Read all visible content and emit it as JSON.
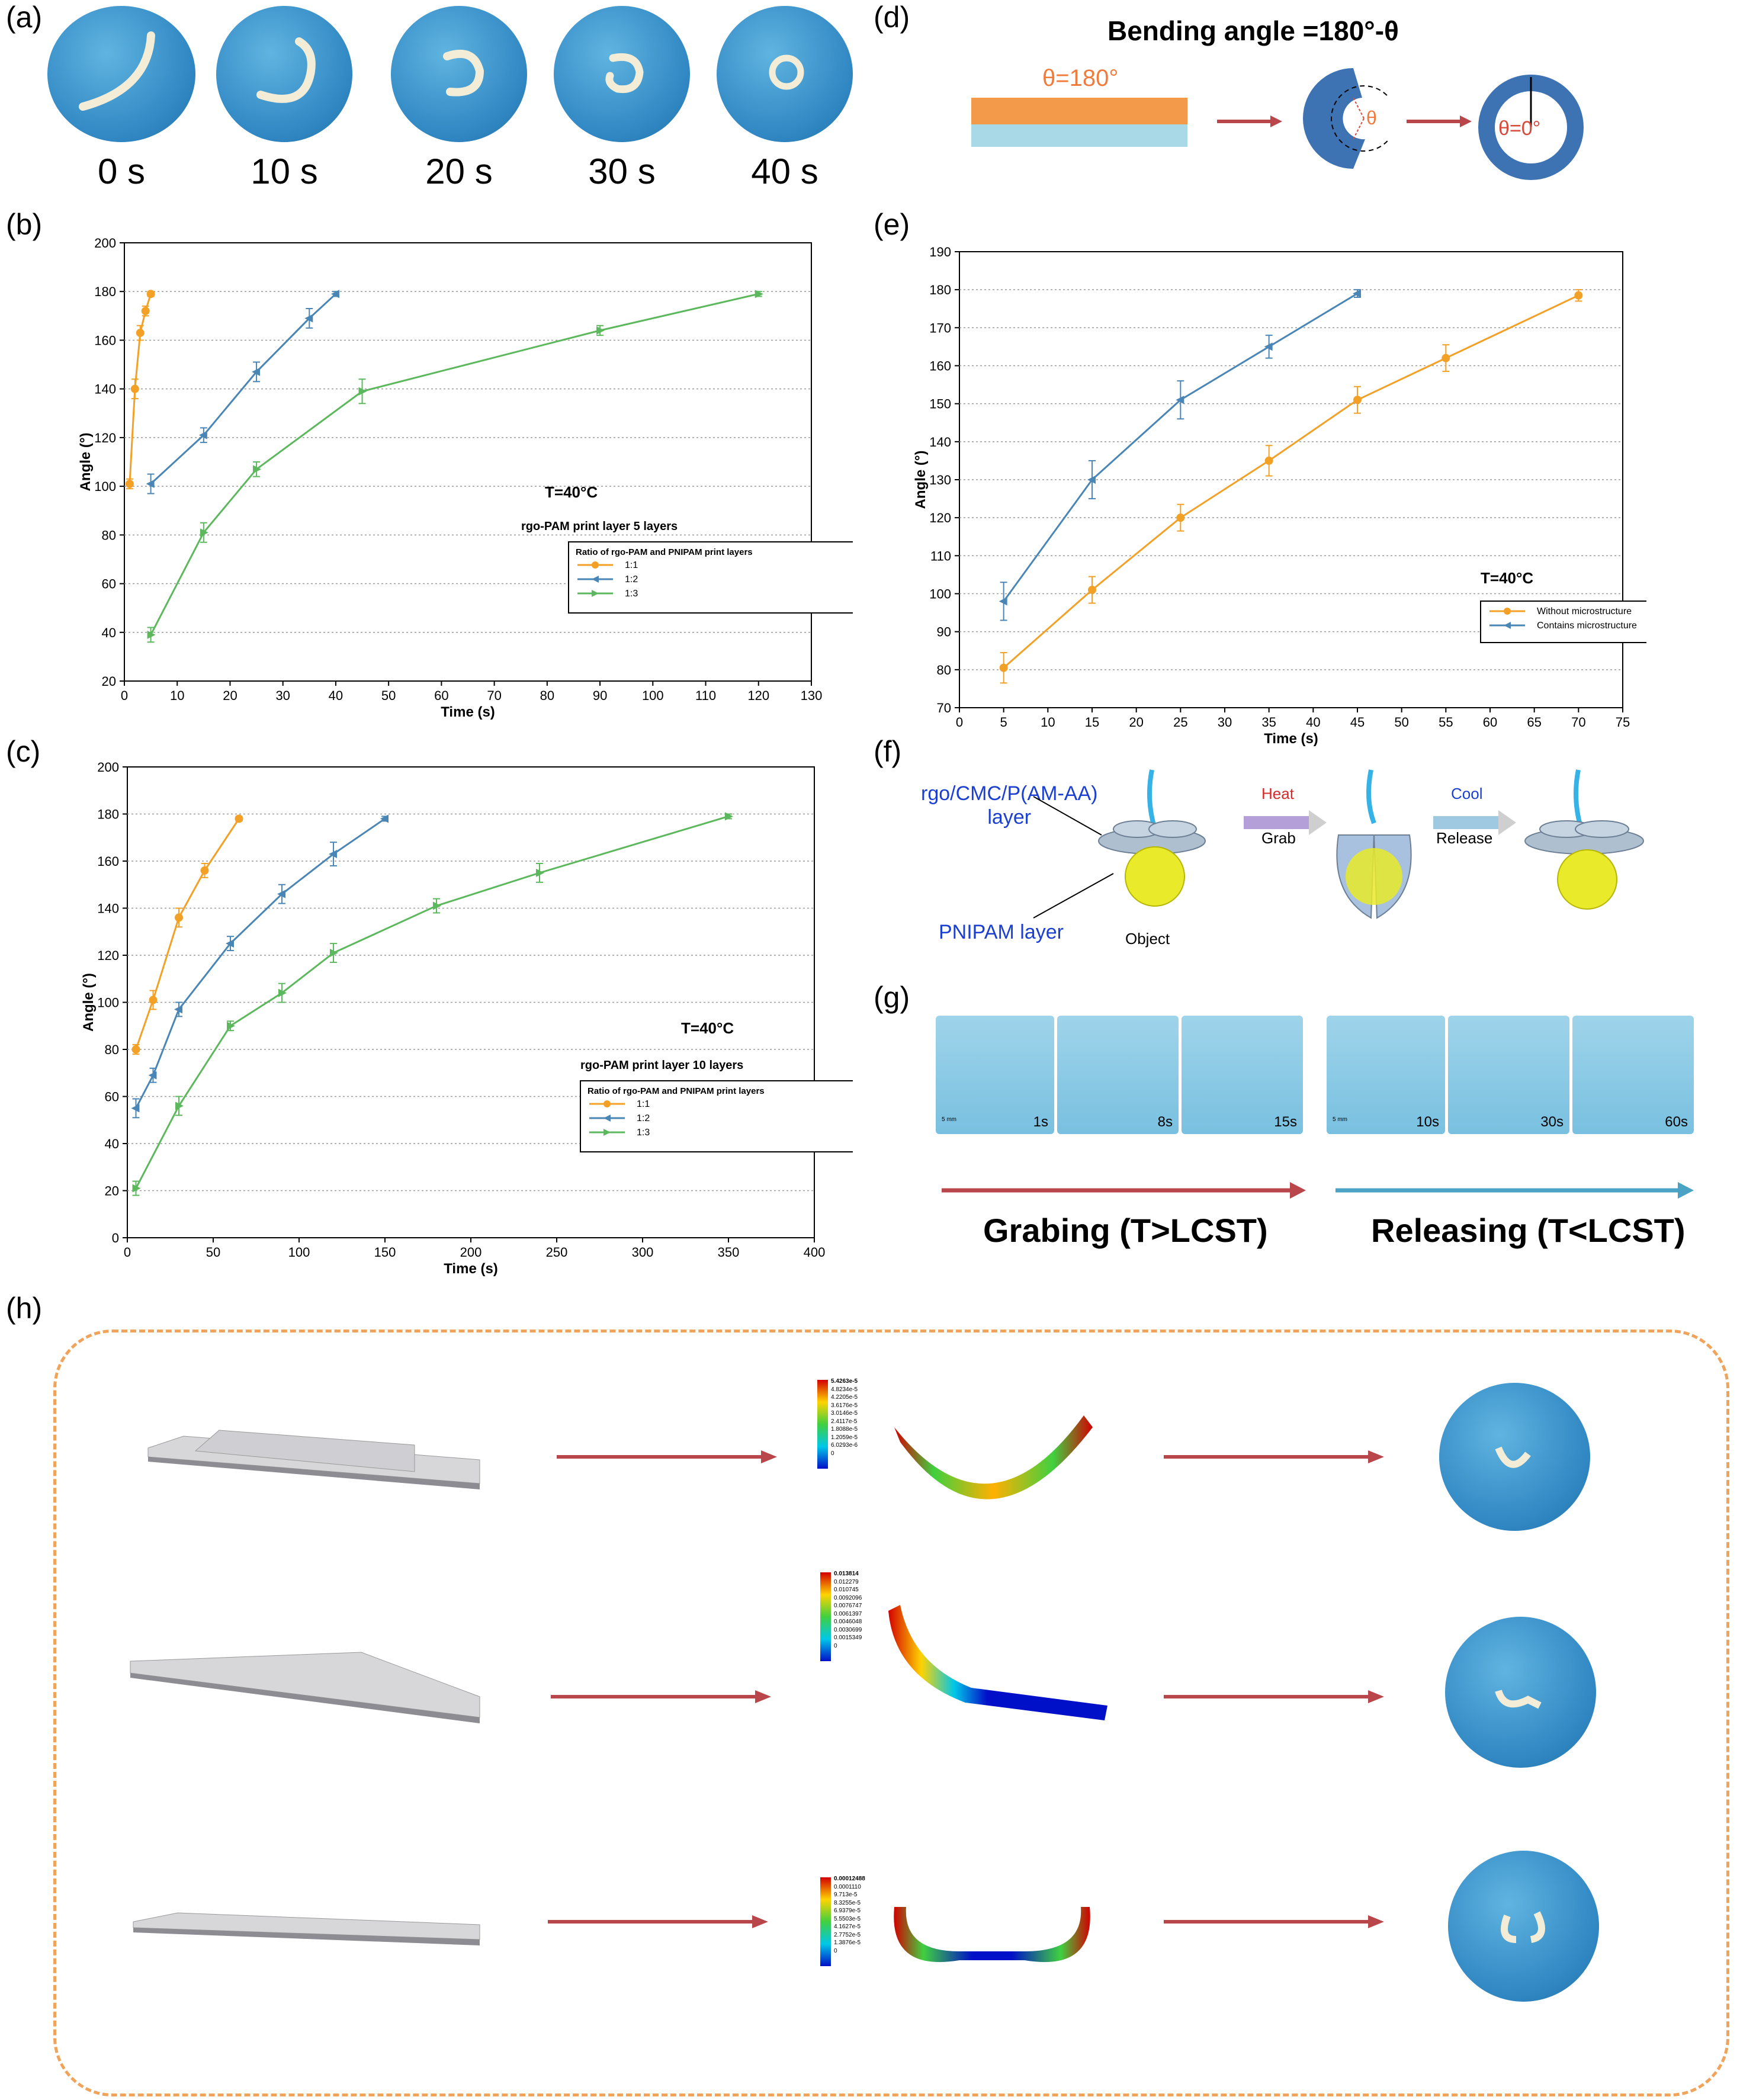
{
  "panels": {
    "a": "(a)",
    "b": "(b)",
    "c": "(c)",
    "d": "(d)",
    "e": "(e)",
    "f": "(f)",
    "g": "(g)",
    "h": "(h)"
  },
  "panel_a": {
    "times": [
      "0 s",
      "10 s",
      "20 s",
      "30 s",
      "40 s"
    ]
  },
  "panel_d": {
    "title": "Bending angle =180°-θ",
    "theta180": "θ=180°",
    "theta": "θ",
    "theta0": "θ=0°"
  },
  "panel_f": {
    "top_layer": "rgo/CMC/P(AM-AA)\nlayer",
    "bottom_layer": "PNIPAM layer",
    "object": "Object",
    "heat": "Heat",
    "grab": "Grab",
    "cool": "Cool",
    "release": "Release"
  },
  "panel_g": {
    "scale": "5 mm",
    "grab_times": [
      "1s",
      "8s",
      "15s"
    ],
    "release_times": [
      "10s",
      "30s",
      "60s"
    ],
    "grab_caption": "Grabing (T>LCST)",
    "release_caption": "Releasing (T<LCST)"
  },
  "panel_h": {
    "legends": [
      [
        "5.4263e-5",
        "4.8234e-5",
        "4.2205e-5",
        "3.6176e-5",
        "3.0146e-5",
        "2.4117e-5",
        "1.8088e-5",
        "1.2059e-5",
        "6.0293e-6",
        "0"
      ],
      [
        "0.013814",
        "0.012279",
        "0.010745",
        "0.0092096",
        "0.0076747",
        "0.0061397",
        "0.0046048",
        "0.0030699",
        "0.0015349",
        "0"
      ],
      [
        "0.00012488",
        "0.0001110",
        "9.713e-5",
        "8.3255e-5",
        "6.9379e-5",
        "5.5503e-5",
        "4.1627e-5",
        "2.7752e-5",
        "1.3876e-5",
        "0"
      ]
    ]
  },
  "colors": {
    "orange": "#f2a126",
    "blue": "#4a86b5",
    "green": "#5cb85c",
    "arrow_red": "#b9464a",
    "arrow_teal": "#4aa3c4",
    "dash_orange": "#f0a35a"
  },
  "chart_data": [
    {
      "id": "b",
      "type": "line",
      "xlabel": "Time (s)",
      "ylabel": "Angle (°)",
      "xlim": [
        0,
        130
      ],
      "ylim": [
        20,
        200
      ],
      "xticks": [
        0,
        10,
        20,
        30,
        40,
        50,
        60,
        70,
        80,
        90,
        100,
        110,
        120,
        130
      ],
      "yticks": [
        20,
        40,
        60,
        80,
        100,
        120,
        140,
        160,
        180,
        200
      ],
      "grid": "horizontal-dotted",
      "annotation": "T=40°C",
      "subtitle": "rgo-PAM print layer 5 layers",
      "legend_title": "Ratio of rgo-PAM and PNIPAM print layers",
      "legend_position": "right",
      "series": [
        {
          "name": "1:1",
          "color": "#f2a126",
          "marker": "circle",
          "x": [
            1,
            2,
            3,
            4,
            5
          ],
          "y": [
            101,
            140,
            163,
            172,
            179
          ],
          "err": [
            2,
            4,
            3,
            2,
            1
          ]
        },
        {
          "name": "1:2",
          "color": "#4a86b5",
          "marker": "triangle-left",
          "x": [
            5,
            15,
            25,
            35,
            40
          ],
          "y": [
            101,
            121,
            147,
            169,
            179
          ],
          "err": [
            4,
            3,
            4,
            4,
            1
          ]
        },
        {
          "name": "1:3",
          "color": "#5cb85c",
          "marker": "triangle-right",
          "x": [
            5,
            15,
            25,
            45,
            90,
            120
          ],
          "y": [
            39,
            81,
            107,
            139,
            164,
            179
          ],
          "err": [
            3,
            4,
            3,
            5,
            2,
            1
          ]
        }
      ]
    },
    {
      "id": "c",
      "type": "line",
      "xlabel": "Time (s)",
      "ylabel": "Angle (°)",
      "xlim": [
        0,
        400
      ],
      "ylim": [
        0,
        200
      ],
      "xticks": [
        0,
        50,
        100,
        150,
        200,
        250,
        300,
        350,
        400
      ],
      "yticks": [
        0,
        20,
        40,
        60,
        80,
        100,
        120,
        140,
        160,
        180,
        200
      ],
      "grid": "horizontal-dotted",
      "annotation": "T=40°C",
      "subtitle": "rgo-PAM print layer 10 layers",
      "legend_title": "Ratio of rgo-PAM and PNIPAM print layers",
      "legend_position": "right",
      "series": [
        {
          "name": "1:1",
          "color": "#f2a126",
          "marker": "circle",
          "x": [
            5,
            15,
            30,
            45,
            65
          ],
          "y": [
            80,
            101,
            136,
            156,
            178
          ],
          "err": [
            2,
            4,
            4,
            3,
            1
          ]
        },
        {
          "name": "1:2",
          "color": "#4a86b5",
          "marker": "triangle-left",
          "x": [
            5,
            15,
            30,
            60,
            90,
            120,
            150
          ],
          "y": [
            55,
            69,
            97,
            125,
            146,
            163,
            178
          ],
          "err": [
            4,
            3,
            3,
            3,
            4,
            5,
            1
          ]
        },
        {
          "name": "1:3",
          "color": "#5cb85c",
          "marker": "triangle-right",
          "x": [
            5,
            30,
            60,
            90,
            120,
            180,
            240,
            350
          ],
          "y": [
            21,
            56,
            90,
            104,
            121,
            141,
            155,
            179
          ],
          "err": [
            3,
            4,
            2,
            4,
            4,
            3,
            4,
            1
          ]
        }
      ]
    },
    {
      "id": "e",
      "type": "line",
      "xlabel": "Time (s)",
      "ylabel": "Angle (°)",
      "xlim": [
        0,
        75
      ],
      "ylim": [
        70,
        190
      ],
      "xticks": [
        0,
        5,
        10,
        15,
        20,
        25,
        30,
        35,
        40,
        45,
        50,
        55,
        60,
        65,
        70,
        75
      ],
      "yticks": [
        70,
        80,
        90,
        100,
        110,
        120,
        130,
        140,
        150,
        160,
        170,
        180,
        190
      ],
      "grid": "horizontal-dotted",
      "annotation": "T=40°C",
      "legend_position": "right",
      "series": [
        {
          "name": "Without microstructure",
          "color": "#f2a126",
          "marker": "circle",
          "x": [
            5,
            15,
            25,
            35,
            45,
            55,
            70
          ],
          "y": [
            80.5,
            101,
            120,
            135,
            151,
            162,
            178.5
          ],
          "err": [
            4,
            3.5,
            3.5,
            4,
            3.5,
            3.5,
            1.5
          ]
        },
        {
          "name": "Contains microstructure",
          "color": "#4a86b5",
          "marker": "triangle-left",
          "x": [
            5,
            15,
            25,
            35,
            45
          ],
          "y": [
            98,
            130,
            151,
            165,
            179
          ],
          "err": [
            5,
            5,
            5,
            3,
            1
          ]
        }
      ]
    }
  ]
}
